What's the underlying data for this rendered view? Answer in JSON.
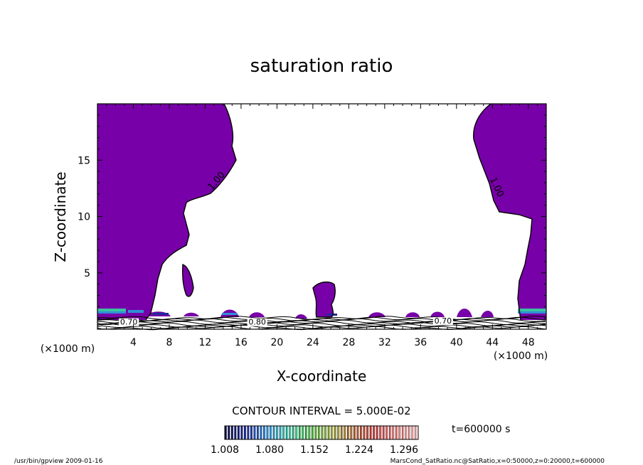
{
  "chart_data": {
    "type": "contour",
    "title": "saturation ratio",
    "xlabel": "X-coordinate",
    "ylabel": "Z-coordinate",
    "x_unit_label": "(×1000 m)",
    "x_unit_label_right": "(×1000 m)",
    "xlim": [
      0,
      50
    ],
    "ylim": [
      0,
      20
    ],
    "x_ticks": [
      4,
      8,
      12,
      16,
      20,
      24,
      28,
      32,
      36,
      40,
      44,
      48
    ],
    "y_ticks": [
      5,
      10,
      15
    ],
    "contour_interval_text": "CONTOUR INTERVAL = 5.000E-02",
    "time_text": "t=600000 s",
    "colorbar": {
      "labels": [
        "1.008",
        "1.080",
        "1.152",
        "1.224",
        "1.296"
      ],
      "colors": [
        "#0a0a40",
        "#1e2a9a",
        "#2f8fd6",
        "#39c2a0",
        "#4fb84a",
        "#9aa83c",
        "#b06a3a",
        "#c23a3a",
        "#e07a7a",
        "#f2b0b0"
      ]
    },
    "fill_color": "#7700a8",
    "contour_labels": [
      {
        "text": "1.00",
        "x": 13.5,
        "z": 13.0
      },
      {
        "text": "1.00",
        "x": 44.2,
        "z": 12.5
      },
      {
        "text": "0.70",
        "x": 3.5,
        "z": 0.4
      },
      {
        "text": "0.80",
        "x": 17.8,
        "z": 0.4
      },
      {
        "text": "0.70",
        "x": 38.5,
        "z": 0.5
      }
    ]
  },
  "footer": {
    "left": "/usr/bin/gpview  2009-01-16",
    "right": "MarsCond_SatRatio.nc@SatRatio,x=0:50000,z=0:20000,t=600000"
  }
}
